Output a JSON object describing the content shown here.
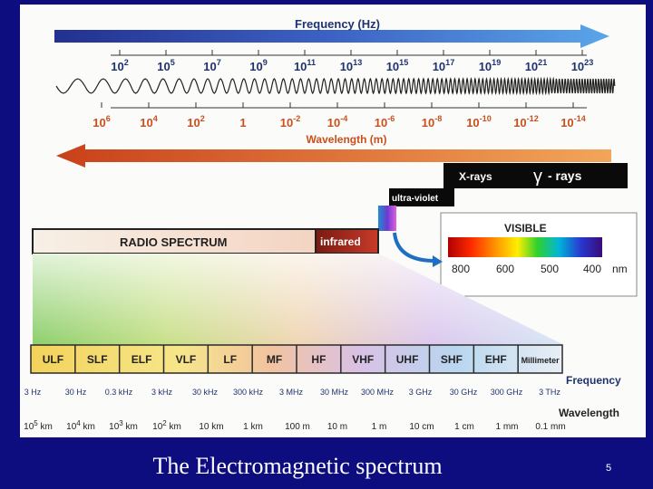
{
  "slide": {
    "caption": "The Electromagnetic spectrum",
    "page_number": "5"
  },
  "diagram": {
    "frequency_title": "Frequency (Hz)",
    "wavelength_title": "Wavelength (m)",
    "freq_exponents": [
      "2",
      "5",
      "7",
      "9",
      "11",
      "13",
      "15",
      "17",
      "19",
      "21",
      "23"
    ],
    "wave_ticks": [
      {
        "base": "10",
        "exp": "6"
      },
      {
        "base": "10",
        "exp": "4"
      },
      {
        "base": "10",
        "exp": "2"
      },
      {
        "base": "1",
        "exp": ""
      },
      {
        "base": "10",
        "exp": "-2"
      },
      {
        "base": "10",
        "exp": "-4"
      },
      {
        "base": "10",
        "exp": "-6"
      },
      {
        "base": "10",
        "exp": "-8"
      },
      {
        "base": "10",
        "exp": "-10"
      },
      {
        "base": "10",
        "exp": "-12"
      },
      {
        "base": "10",
        "exp": "-14"
      }
    ],
    "xrays": "X-rays",
    "gamma_symbol": "γ",
    "gamma_rays": "- rays",
    "ultraviolet": "ultra-violet",
    "visible": "VISIBLE",
    "visible_nm": [
      "800",
      "600",
      "500",
      "400"
    ],
    "nm_unit": "nm",
    "radio": "RADIO SPECTRUM",
    "infrared": "infrared",
    "bands": [
      "ULF",
      "SLF",
      "ELF",
      "VLF",
      "LF",
      "MF",
      "HF",
      "VHF",
      "UHF",
      "SHF",
      "EHF",
      "Millimeter"
    ],
    "frequency_label": "Frequency",
    "wavelength_label": "Wavelength",
    "band_freqs": [
      "3 Hz",
      "30 Hz",
      "0.3 kHz",
      "3 kHz",
      "30 kHz",
      "300 kHz",
      "3 MHz",
      "30 MHz",
      "300 MHz",
      "3 GHz",
      "30 GHz",
      "300 GHz",
      "3 THz"
    ],
    "band_waves": [
      {
        "base": "10",
        "exp": "5",
        "unit": " km"
      },
      {
        "base": "10",
        "exp": "4",
        "unit": " km"
      },
      {
        "base": "10",
        "exp": "3",
        "unit": " km"
      },
      {
        "base": "10",
        "exp": "2",
        "unit": " km"
      },
      {
        "base": "10 km",
        "exp": "",
        "unit": ""
      },
      {
        "base": "1 km",
        "exp": "",
        "unit": ""
      },
      {
        "base": "100 m",
        "exp": "",
        "unit": ""
      },
      {
        "base": "10 m",
        "exp": "",
        "unit": ""
      },
      {
        "base": "1 m",
        "exp": "",
        "unit": ""
      },
      {
        "base": "10 cm",
        "exp": "",
        "unit": ""
      },
      {
        "base": "1 cm",
        "exp": "",
        "unit": ""
      },
      {
        "base": "1 mm",
        "exp": "",
        "unit": ""
      },
      {
        "base": "0.1 mm",
        "exp": "",
        "unit": ""
      }
    ],
    "colors": {
      "freq_arrow": "#1f3fa8",
      "wave_arrow": "#d2551f",
      "tick_text_dark": "#1f3270",
      "tick_text_orange": "#c9501d",
      "bands_border": "#2b2b2b"
    }
  }
}
